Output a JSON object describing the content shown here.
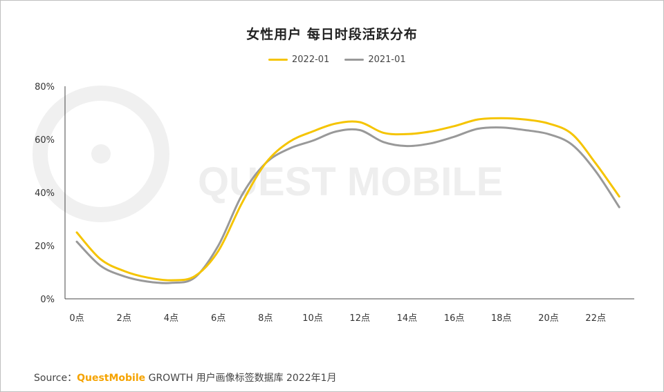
{
  "chart_data": {
    "type": "line",
    "title": "女性用户 每日时段活跃分布",
    "xlabel": "",
    "ylabel": "",
    "x": [
      0,
      1,
      2,
      3,
      4,
      5,
      6,
      7,
      8,
      9,
      10,
      11,
      12,
      13,
      14,
      15,
      16,
      17,
      18,
      19,
      20,
      21,
      22,
      23
    ],
    "x_tick_labels": [
      "0点",
      "2点",
      "4点",
      "6点",
      "8点",
      "10点",
      "12点",
      "14点",
      "16点",
      "18点",
      "20点",
      "22点"
    ],
    "y_tick_labels": [
      "0%",
      "20%",
      "40%",
      "60%",
      "80%"
    ],
    "ylim": [
      0,
      80
    ],
    "y_unit": "%",
    "grid": false,
    "legend": "top-center",
    "series": [
      {
        "name": "2022-01",
        "color": "#f5c400",
        "values": [
          25,
          15,
          10.5,
          8,
          7,
          8.5,
          18,
          36,
          51,
          59,
          63,
          66,
          66.5,
          62.5,
          62,
          63,
          65,
          67.5,
          68,
          67.5,
          66,
          62,
          51,
          38.5
        ]
      },
      {
        "name": "2021-01",
        "color": "#999999",
        "values": [
          21.5,
          12.5,
          8.5,
          6.5,
          6,
          8,
          20,
          39,
          51,
          56.5,
          59.5,
          63,
          63.5,
          59,
          57.5,
          58.5,
          61,
          64,
          64.5,
          63.5,
          62,
          58,
          48,
          34.5
        ]
      }
    ]
  },
  "watermark": {
    "text": "QUEST MOBILE"
  },
  "source": {
    "label": "Source：",
    "brand": "QuestMobile",
    "text": "GROWTH 用户画像标签数据库 2022年1月"
  }
}
